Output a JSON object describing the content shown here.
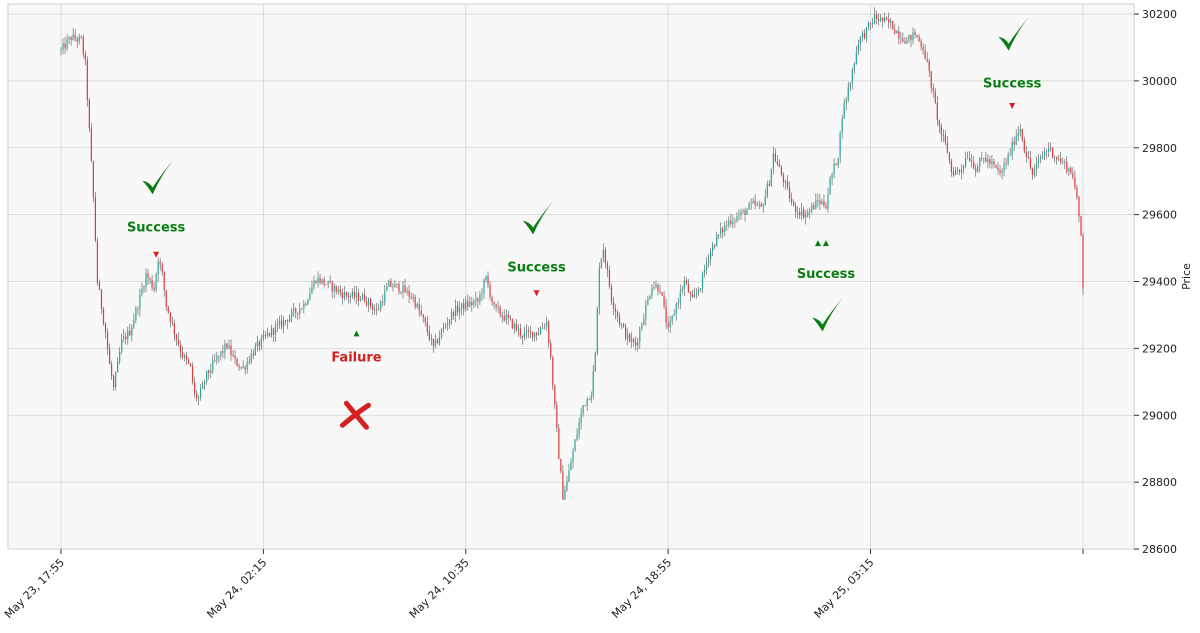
{
  "chart_data": {
    "type": "candlestick",
    "title": "",
    "xlabel": "",
    "ylabel": "Price",
    "ylim": [
      28600,
      30230
    ],
    "yticks": [
      28600,
      28800,
      29000,
      29200,
      29400,
      29600,
      29800,
      30000,
      30200
    ],
    "ytick_labels": [
      "28600",
      "28800",
      "29000",
      "29200",
      "29400",
      "29600",
      "29800",
      "30000",
      "30200"
    ],
    "xticks": [
      "May 23, 17:55",
      "May 24, 02:15",
      "May 24, 10:35",
      "May 24, 18:55",
      "May 25, 03:15"
    ],
    "xtick_index": [
      0,
      100,
      200,
      300,
      400
    ],
    "grid": true,
    "colors": {
      "up": "#26a69a",
      "down": "#e23a3a",
      "success": "#0a7d12",
      "failure": "#d42020",
      "grid": "#d4d4d4",
      "panel": "#f8f8f8"
    },
    "price_path": [
      [
        0,
        30090
      ],
      [
        5,
        30130
      ],
      [
        10,
        30120
      ],
      [
        12,
        30050
      ],
      [
        14,
        29850
      ],
      [
        16,
        29650
      ],
      [
        18,
        29400
      ],
      [
        22,
        29250
      ],
      [
        24,
        29150
      ],
      [
        26,
        29080
      ],
      [
        30,
        29220
      ],
      [
        34,
        29250
      ],
      [
        38,
        29330
      ],
      [
        42,
        29420
      ],
      [
        46,
        29380
      ],
      [
        48,
        29470
      ],
      [
        50,
        29420
      ],
      [
        52,
        29330
      ],
      [
        56,
        29250
      ],
      [
        60,
        29180
      ],
      [
        64,
        29140
      ],
      [
        66,
        29060
      ],
      [
        68,
        29050
      ],
      [
        72,
        29120
      ],
      [
        76,
        29160
      ],
      [
        82,
        29210
      ],
      [
        86,
        29160
      ],
      [
        90,
        29140
      ],
      [
        96,
        29200
      ],
      [
        102,
        29240
      ],
      [
        110,
        29280
      ],
      [
        116,
        29310
      ],
      [
        120,
        29330
      ],
      [
        126,
        29410
      ],
      [
        132,
        29390
      ],
      [
        140,
        29360
      ],
      [
        150,
        29350
      ],
      [
        156,
        29310
      ],
      [
        162,
        29390
      ],
      [
        168,
        29380
      ],
      [
        174,
        29350
      ],
      [
        180,
        29270
      ],
      [
        184,
        29200
      ],
      [
        188,
        29250
      ],
      [
        194,
        29310
      ],
      [
        200,
        29330
      ],
      [
        206,
        29340
      ],
      [
        210,
        29410
      ],
      [
        214,
        29320
      ],
      [
        220,
        29290
      ],
      [
        228,
        29240
      ],
      [
        236,
        29250
      ],
      [
        240,
        29280
      ],
      [
        242,
        29170
      ],
      [
        244,
        29020
      ],
      [
        246,
        28880
      ],
      [
        248,
        28760
      ],
      [
        250,
        28800
      ],
      [
        254,
        28920
      ],
      [
        258,
        29030
      ],
      [
        262,
        29070
      ],
      [
        264,
        29180
      ],
      [
        266,
        29450
      ],
      [
        268,
        29500
      ],
      [
        272,
        29350
      ],
      [
        276,
        29280
      ],
      [
        280,
        29230
      ],
      [
        284,
        29210
      ],
      [
        288,
        29300
      ],
      [
        292,
        29390
      ],
      [
        296,
        29380
      ],
      [
        300,
        29250
      ],
      [
        304,
        29330
      ],
      [
        308,
        29400
      ],
      [
        312,
        29340
      ],
      [
        316,
        29390
      ],
      [
        320,
        29480
      ],
      [
        324,
        29530
      ],
      [
        330,
        29580
      ],
      [
        336,
        29600
      ],
      [
        342,
        29630
      ],
      [
        346,
        29620
      ],
      [
        350,
        29700
      ],
      [
        352,
        29780
      ],
      [
        356,
        29720
      ],
      [
        362,
        29620
      ],
      [
        368,
        29600
      ],
      [
        374,
        29640
      ],
      [
        378,
        29630
      ],
      [
        380,
        29700
      ],
      [
        384,
        29780
      ],
      [
        386,
        29900
      ],
      [
        390,
        30000
      ],
      [
        394,
        30120
      ],
      [
        398,
        30150
      ],
      [
        402,
        30190
      ],
      [
        406,
        30180
      ],
      [
        410,
        30170
      ],
      [
        414,
        30140
      ],
      [
        418,
        30120
      ],
      [
        422,
        30140
      ],
      [
        426,
        30100
      ],
      [
        428,
        30050
      ],
      [
        430,
        29990
      ],
      [
        434,
        29860
      ],
      [
        438,
        29790
      ],
      [
        440,
        29730
      ],
      [
        444,
        29730
      ],
      [
        448,
        29780
      ],
      [
        452,
        29740
      ],
      [
        456,
        29770
      ],
      [
        460,
        29750
      ],
      [
        464,
        29720
      ],
      [
        468,
        29770
      ],
      [
        472,
        29840
      ],
      [
        474,
        29860
      ],
      [
        476,
        29800
      ],
      [
        480,
        29720
      ],
      [
        484,
        29770
      ],
      [
        488,
        29800
      ],
      [
        492,
        29770
      ],
      [
        496,
        29750
      ],
      [
        500,
        29720
      ],
      [
        502,
        29640
      ],
      [
        504,
        29540
      ],
      [
        505,
        29390
      ]
    ],
    "annotations": [
      {
        "kind": "success",
        "label": "Success",
        "x": 47,
        "label_y": 29565,
        "check_y": 29695,
        "marker": "down",
        "marker_y": 29480
      },
      {
        "kind": "failure",
        "label": "Failure",
        "x": 146,
        "label_y": 29175,
        "cross_y": 29000,
        "marker": "up",
        "marker_y": 29245
      },
      {
        "kind": "success",
        "label": "Success",
        "x": 235,
        "label_y": 29445,
        "check_y": 29575,
        "marker": "down",
        "marker_y": 29365
      },
      {
        "kind": "success",
        "label": "Success",
        "x": 378,
        "label_y": 29425,
        "check_y": 29285,
        "marker": "up",
        "marker_y": 29515
      },
      {
        "kind": "success",
        "label": "Success",
        "x": 470,
        "label_y": 29995,
        "check_y": 30125,
        "marker": "down",
        "marker_y": 29925
      }
    ],
    "up_markers": [
      [
        378,
        29515
      ]
    ]
  }
}
